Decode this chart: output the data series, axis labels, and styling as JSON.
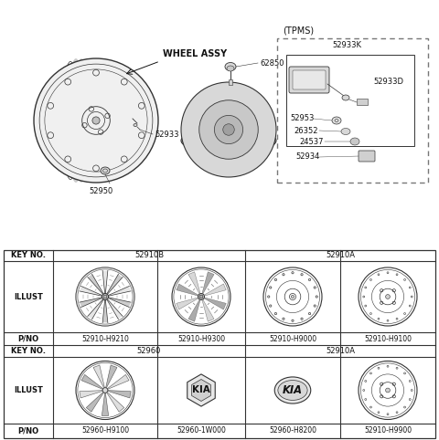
{
  "bg_color": "#ffffff",
  "line_color": "#333333",
  "text_color": "#111111",
  "tpms_label": "(TPMS)",
  "font_size_small": 6.0,
  "font_size_med": 7.0,
  "font_size_label": 7.5,
  "table": {
    "row1_col12_span": "52910B",
    "row1_col34_span": "52910A",
    "row3_vals": [
      "52910-H9210",
      "52910-H9300",
      "52910-H9000",
      "52910-H9100"
    ],
    "row4_col12_span": "52960",
    "row4_col34_span": "52910A",
    "row6_vals": [
      "52960-H9100",
      "52960-1W000",
      "52960-H8200",
      "52910-H9900"
    ]
  }
}
